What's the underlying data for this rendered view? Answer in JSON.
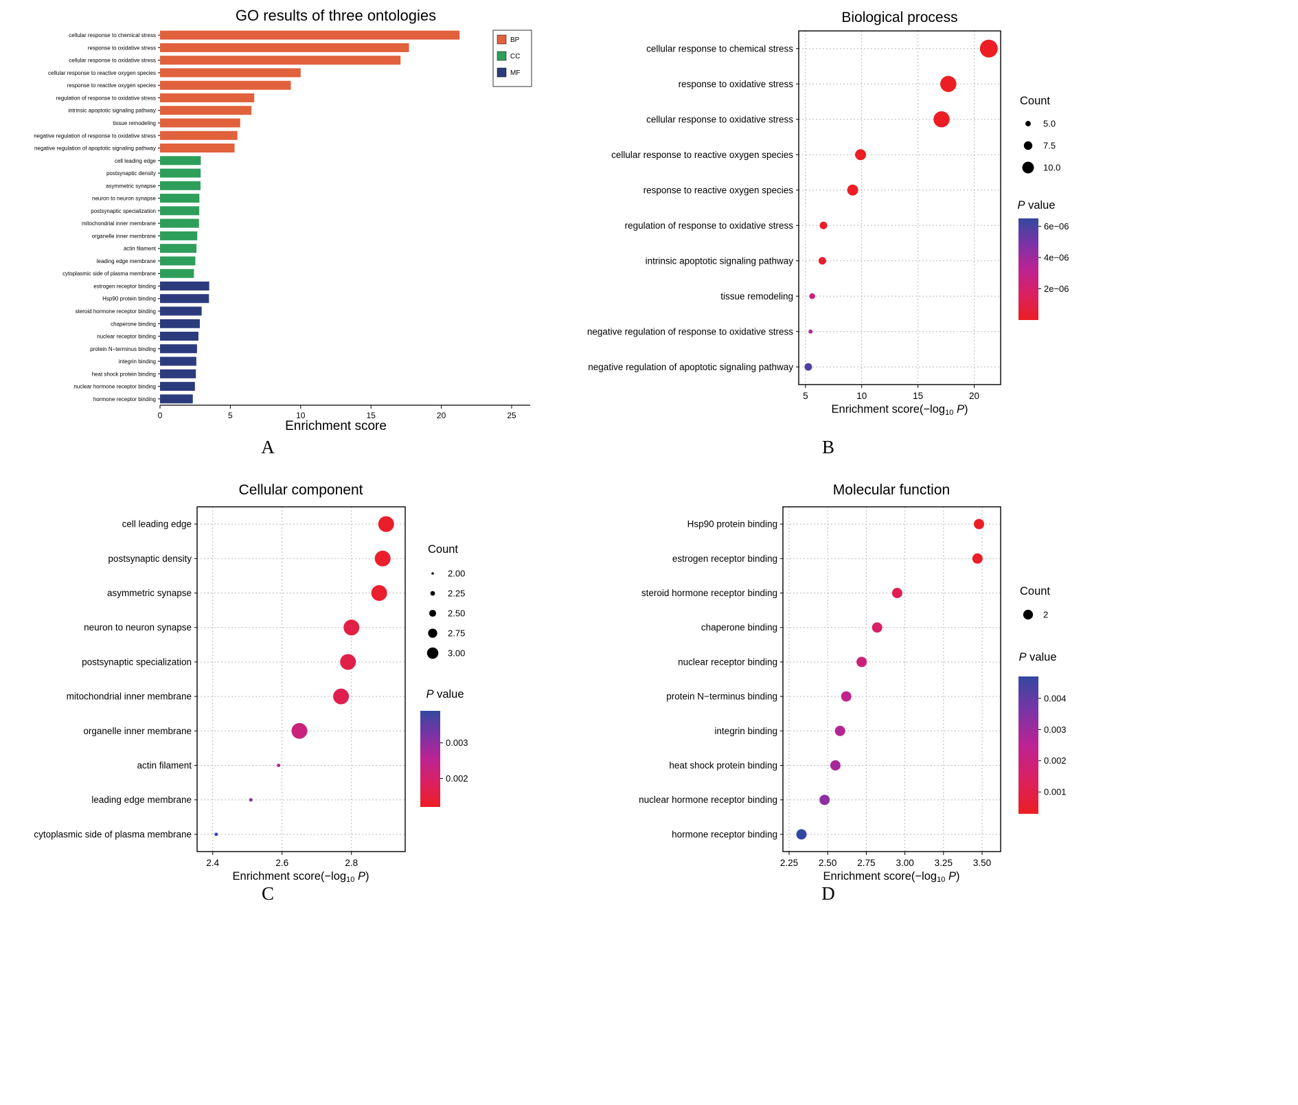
{
  "panels": [
    {
      "label": "A"
    },
    {
      "label": "B"
    },
    {
      "label": "C"
    },
    {
      "label": "D"
    }
  ],
  "colors": {
    "bp": "#E0613B",
    "cc": "#2E9E5B",
    "mf": "#2C3B7D",
    "gradient_stops": [
      "#EC1E24",
      "#DA2060",
      "#BC2394",
      "#7B33A6",
      "#3448A0"
    ]
  },
  "chart_data": [
    {
      "type": "bar",
      "title": "GO results of three ontologies",
      "xlabel": "Enrichment score",
      "xlim": [
        0,
        25
      ],
      "xticks": [
        0,
        5,
        10,
        15,
        20,
        25
      ],
      "legend": [
        {
          "label": "BP",
          "color": "#E0613B"
        },
        {
          "label": "CC",
          "color": "#2E9E5B"
        },
        {
          "label": "MF",
          "color": "#2C3B7D"
        }
      ],
      "categories": [
        "cellular response to chemical stress",
        "response to oxidative stress",
        "cellular response to oxidative stress",
        "cellular response to reactive oxygen species",
        "response to reactive oxygen species",
        "regulation of response to oxidative stress",
        "intrinsic apoptotic signaling pathway",
        "tissue remodeling",
        "negative regulation of response to oxidative stress",
        "negative regulation of apoptotic signaling pathway",
        "cell leading edge",
        "postsynaptic density",
        "asymmetric synapse",
        "neuron to neuron synapse",
        "postsynaptic specialization",
        "mitochondrial inner membrane",
        "organelle inner membrane",
        "actin filament",
        "leading edge membrane",
        "cytoplasmic side of plasma membrane",
        "estrogen receptor binding",
        "Hsp90 protein binding",
        "steroid hormone receptor binding",
        "chaperone binding",
        "nuclear receptor binding",
        "protein N−terminus binding",
        "integrin binding",
        "heat shock protein binding",
        "nuclear hormone receptor binding",
        "hormone receptor binding"
      ],
      "values": [
        21.3,
        17.7,
        17.1,
        10.0,
        9.3,
        6.7,
        6.5,
        5.7,
        5.5,
        5.3,
        2.9,
        2.89,
        2.88,
        2.8,
        2.79,
        2.77,
        2.65,
        2.59,
        2.51,
        2.41,
        3.5,
        3.48,
        2.96,
        2.83,
        2.73,
        2.63,
        2.58,
        2.55,
        2.48,
        2.33
      ],
      "groups": [
        "BP",
        "BP",
        "BP",
        "BP",
        "BP",
        "BP",
        "BP",
        "BP",
        "BP",
        "BP",
        "CC",
        "CC",
        "CC",
        "CC",
        "CC",
        "CC",
        "CC",
        "CC",
        "CC",
        "CC",
        "MF",
        "MF",
        "MF",
        "MF",
        "MF",
        "MF",
        "MF",
        "MF",
        "MF",
        "MF"
      ]
    },
    {
      "type": "dot",
      "title": "Biological process",
      "xlabel_parts": {
        "pre": "Enrichment score(−log",
        "sub": "10",
        "mid": " ",
        "italic": "P",
        "post": ")"
      },
      "xlim": [
        4.4,
        22.35
      ],
      "xticks": [
        5,
        10,
        15,
        20
      ],
      "xtick_labels": [
        "5",
        "10",
        "15",
        "20"
      ],
      "points": [
        {
          "label": "cellular response to chemical stress",
          "x": 21.3,
          "count": 11,
          "p": 5e-22
        },
        {
          "label": "response to oxidative stress",
          "x": 17.7,
          "count": 10,
          "p": 2e-18
        },
        {
          "label": "cellular response to oxidative stress",
          "x": 17.1,
          "count": 10,
          "p": 8e-18
        },
        {
          "label": "cellular response to reactive oxygen species",
          "x": 9.9,
          "count": 7,
          "p": 1.3e-10
        },
        {
          "label": "response to reactive oxygen species",
          "x": 9.2,
          "count": 7,
          "p": 6.3e-10
        },
        {
          "label": "regulation of response to oxidative stress",
          "x": 6.6,
          "count": 5,
          "p": 2.5e-07
        },
        {
          "label": "intrinsic apoptotic signaling pathway",
          "x": 6.5,
          "count": 5,
          "p": 3.2e-07
        },
        {
          "label": "tissue remodeling",
          "x": 5.6,
          "count": 4,
          "p": 2.4e-06
        },
        {
          "label": "negative regulation of response to oxidative stress",
          "x": 5.45,
          "count": 3,
          "p": 3.5e-06
        },
        {
          "label": "negative regulation of apoptotic signaling pathway",
          "x": 5.25,
          "count": 5,
          "p": 5.9e-06
        }
      ],
      "size_scale": {
        "domain": [
          3,
          11
        ],
        "range": [
          3,
          13
        ]
      },
      "color_scale": {
        "domain": [
          0,
          6.5e-06
        ]
      },
      "count_legend": {
        "title": "Count",
        "items": [
          {
            "label": "5.0",
            "count": 5
          },
          {
            "label": "7.5",
            "count": 7.5
          },
          {
            "label": "10.0",
            "count": 10
          }
        ]
      },
      "p_legend": {
        "title_italic": "P",
        "title_rest": " value",
        "ticks": [
          {
            "label": "6e−06",
            "p": 6e-06
          },
          {
            "label": "4e−06",
            "p": 4e-06
          },
          {
            "label": "2e−06",
            "p": 2e-06
          }
        ]
      }
    },
    {
      "type": "dot",
      "title": "Cellular component",
      "xlabel_parts": {
        "pre": "Enrichment score(−log",
        "sub": "10",
        "mid": " ",
        "italic": "P",
        "post": ")"
      },
      "xlim": [
        2.355,
        2.955
      ],
      "xticks": [
        2.4,
        2.6,
        2.8
      ],
      "xtick_labels": [
        "2.4",
        "2.6",
        "2.8"
      ],
      "points": [
        {
          "label": "cell leading edge",
          "x": 2.9,
          "count": 3,
          "p": 0.00126
        },
        {
          "label": "postsynaptic density",
          "x": 2.89,
          "count": 3,
          "p": 0.00129
        },
        {
          "label": "asymmetric synapse",
          "x": 2.88,
          "count": 3,
          "p": 0.00132
        },
        {
          "label": "neuron to neuron synapse",
          "x": 2.8,
          "count": 3,
          "p": 0.00158
        },
        {
          "label": "postsynaptic specialization",
          "x": 2.79,
          "count": 3,
          "p": 0.00162
        },
        {
          "label": "mitochondrial inner membrane",
          "x": 2.77,
          "count": 3,
          "p": 0.0017
        },
        {
          "label": "organelle inner membrane",
          "x": 2.65,
          "count": 3,
          "p": 0.00224
        },
        {
          "label": "actin filament",
          "x": 2.59,
          "count": 2,
          "p": 0.00257
        },
        {
          "label": "leading edge membrane",
          "x": 2.51,
          "count": 2,
          "p": 0.00309
        },
        {
          "label": "cytoplasmic side of plasma membrane",
          "x": 2.41,
          "count": 2,
          "p": 0.00389
        }
      ],
      "size_scale": {
        "domain": [
          2,
          3
        ],
        "range": [
          2.5,
          11.5
        ]
      },
      "color_scale": {
        "domain": [
          0.0012,
          0.0039
        ]
      },
      "count_legend": {
        "title": "Count",
        "items": [
          {
            "label": "2.00",
            "count": 2
          },
          {
            "label": "2.25",
            "count": 2.25
          },
          {
            "label": "2.50",
            "count": 2.5
          },
          {
            "label": "2.75",
            "count": 2.75
          },
          {
            "label": "3.00",
            "count": 3
          }
        ]
      },
      "p_legend": {
        "title_italic": "P",
        "title_rest": " value",
        "ticks": [
          {
            "label": "0.003",
            "p": 0.003
          },
          {
            "label": "0.002",
            "p": 0.002
          }
        ]
      }
    },
    {
      "type": "dot",
      "title": "Molecular function",
      "xlabel_parts": {
        "pre": "Enrichment score(−log",
        "sub": "10",
        "mid": " ",
        "italic": "P",
        "post": ")"
      },
      "xlim": [
        2.21,
        3.62
      ],
      "xticks": [
        2.25,
        2.5,
        2.75,
        3.0,
        3.25,
        3.5
      ],
      "xtick_labels": [
        "2.25",
        "2.50",
        "2.75",
        "3.00",
        "3.25",
        "3.50"
      ],
      "points": [
        {
          "label": "Hsp90 protein binding",
          "x": 3.48,
          "count": 2,
          "p": 0.00034
        },
        {
          "label": "estrogen receptor binding",
          "x": 3.47,
          "count": 2,
          "p": 0.00035
        },
        {
          "label": "steroid hormone receptor binding",
          "x": 2.95,
          "count": 2,
          "p": 0.00112
        },
        {
          "label": "chaperone binding",
          "x": 2.82,
          "count": 2,
          "p": 0.00151
        },
        {
          "label": "nuclear receptor binding",
          "x": 2.72,
          "count": 2,
          "p": 0.0019
        },
        {
          "label": "protein N−terminus binding",
          "x": 2.62,
          "count": 2,
          "p": 0.0024
        },
        {
          "label": "integrin binding",
          "x": 2.58,
          "count": 2,
          "p": 0.00263
        },
        {
          "label": "heat shock protein binding",
          "x": 2.55,
          "count": 2,
          "p": 0.00282
        },
        {
          "label": "nuclear hormone receptor binding",
          "x": 2.48,
          "count": 2,
          "p": 0.00331
        },
        {
          "label": "hormone receptor binding",
          "x": 2.33,
          "count": 2,
          "p": 0.00468
        }
      ],
      "size_scale": {
        "domain": [
          2,
          2
        ],
        "range": [
          7.5,
          7.5
        ]
      },
      "color_scale": {
        "domain": [
          0.0003,
          0.0047
        ]
      },
      "count_legend": {
        "title": "Count",
        "items": [
          {
            "label": "2",
            "count": 2
          }
        ]
      },
      "p_legend": {
        "title_italic": "P",
        "title_rest": " value",
        "ticks": [
          {
            "label": "0.004",
            "p": 0.004
          },
          {
            "label": "0.003",
            "p": 0.003
          },
          {
            "label": "0.002",
            "p": 0.002
          },
          {
            "label": "0.001",
            "p": 0.001
          }
        ]
      }
    }
  ]
}
